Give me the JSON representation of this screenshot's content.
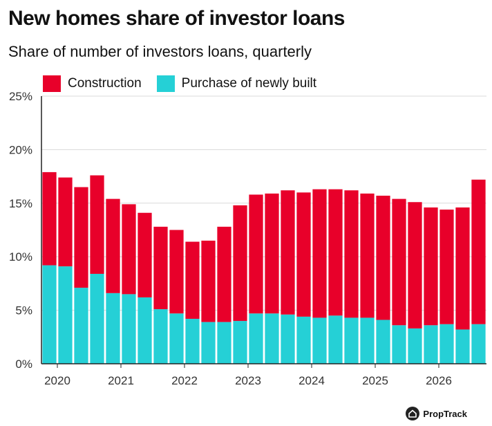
{
  "header": {
    "title": "New homes share of investor loans",
    "subtitle": "Share of number of investors loans, quarterly"
  },
  "legend": {
    "items": [
      {
        "label": "Construction",
        "color": "#e8002a"
      },
      {
        "label": "Purchase of newly built",
        "color": "#25d0d6"
      }
    ]
  },
  "brand": {
    "name": "PropTrack",
    "icon": "house-icon"
  },
  "chart_data": {
    "type": "bar",
    "stacked": true,
    "x_tick_labels": [
      "2020",
      "2021",
      "2022",
      "2023",
      "2024",
      "2025",
      "2026"
    ],
    "y_tick_labels": [
      "0%",
      "5%",
      "10%",
      "15%",
      "20%",
      "25%"
    ],
    "ylim": [
      0,
      25
    ],
    "grid": true,
    "legend_position": "top-left",
    "series": [
      {
        "name": "Purchase of newly built",
        "color": "#25d0d6",
        "values": [
          9.2,
          9.1,
          7.1,
          8.4,
          6.6,
          6.5,
          6.2,
          5.1,
          4.7,
          4.2,
          3.9,
          3.9,
          4.0,
          4.7,
          4.7,
          4.6,
          4.4,
          4.3,
          4.5,
          4.3,
          4.3,
          4.1,
          3.6,
          3.3,
          3.6,
          3.7,
          3.2,
          3.7
        ]
      },
      {
        "name": "Construction",
        "color": "#e8002a",
        "values": [
          8.7,
          8.3,
          9.4,
          9.2,
          8.8,
          8.4,
          7.9,
          7.7,
          7.8,
          7.2,
          7.6,
          8.9,
          10.8,
          11.1,
          11.2,
          11.6,
          11.6,
          12.0,
          11.8,
          11.9,
          11.6,
          11.6,
          11.8,
          11.8,
          11.0,
          10.7,
          11.4,
          13.5
        ]
      }
    ]
  }
}
